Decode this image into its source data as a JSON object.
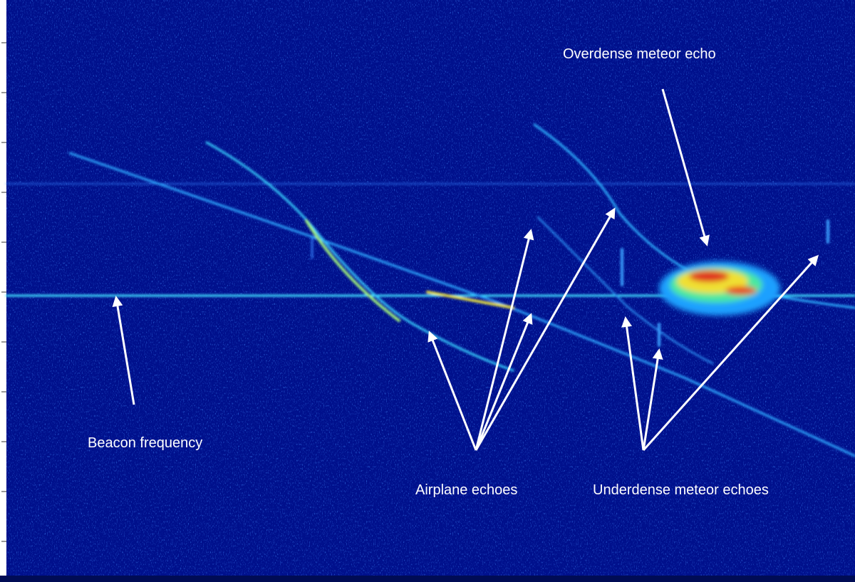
{
  "labels": {
    "overdense": "Overdense meteor echo",
    "beacon": "Beacon frequency",
    "airplane": "Airplane echoes",
    "underdense": "Underdense meteor echoes"
  }
}
